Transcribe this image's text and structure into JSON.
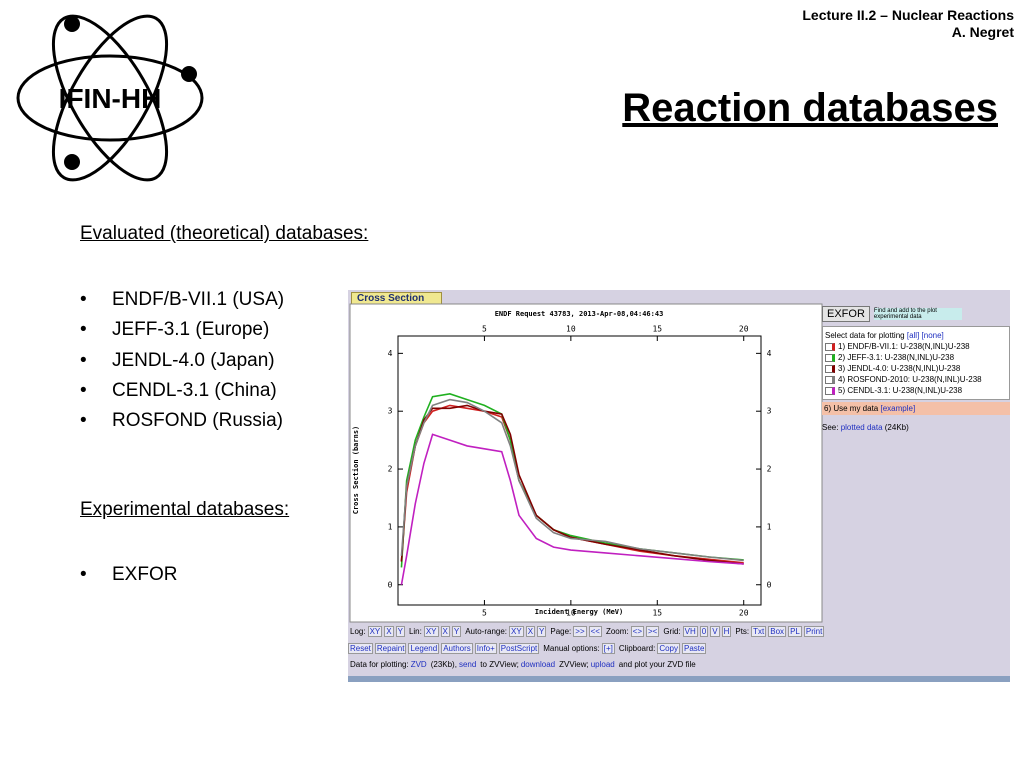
{
  "logo": {
    "text": "IFIN-HH"
  },
  "header": {
    "lecture": "Lecture II.2 – Nuclear Reactions",
    "author": "A. Negret",
    "title": "Reaction databases"
  },
  "body": {
    "heading1": "Evaluated (theoretical)  databases:",
    "list1": [
      "ENDF/B-VII.1 (USA)",
      "JEFF-3.1 (Europe)",
      "JENDL-4.0 (Japan)",
      "CENDL-3.1 (China)",
      "ROSFOND (Russia)"
    ],
    "heading2": "Experimental databases:",
    "list2": [
      "EXFOR"
    ]
  },
  "screenshot": {
    "tab": "Cross Section",
    "exfor_button": "EXFOR",
    "exfor_note": "Find and add to the plot experimental data",
    "select": [
      "Select data for plotting",
      "[all]",
      "[none]"
    ],
    "own_data": [
      "6) Use my data",
      "[example]"
    ],
    "see": [
      "See:",
      "plotted data",
      "(24Kb)"
    ],
    "toolbar": [
      [
        "Log:",
        "XY",
        "X",
        "Y",
        "Lin:",
        "XY",
        "X",
        "Y",
        "Auto-range:",
        "XY",
        "X",
        "Y",
        "Page:",
        ">>",
        "<<",
        "Zoom:",
        "<>",
        "><",
        "Grid:",
        "VH",
        "0",
        "V",
        "H",
        "Pts:",
        "Txt",
        "Box",
        "PL",
        "Print"
      ],
      [
        "Reset",
        "Repaint",
        "Legend",
        "Authors",
        "Info+",
        "PostScript",
        "Manual options:",
        "[+]",
        "Clipboard:",
        "Copy",
        "Paste"
      ],
      [
        "Data for plotting:",
        "ZVD",
        "(23Kb),",
        "send",
        "to ZVView;",
        "download",
        "ZVView;",
        "upload",
        "and plot your ZVD file"
      ]
    ]
  },
  "chart_data": {
    "type": "line",
    "title": "ENDF Request 43783, 2013-Apr-08,04:46:43",
    "x_label": "Incident Energy (MeV)",
    "y_label": "Cross Section (barns)",
    "x": [
      0.2,
      0.5,
      1,
      1.5,
      2,
      3,
      4,
      5,
      6,
      6.5,
      7,
      8,
      9,
      10,
      12,
      14,
      16,
      18,
      20
    ],
    "series": [
      {
        "name": "1) ENDF/B-VII.1: U-238(N,INL)U-238",
        "color": "#d02020",
        "values": [
          0.4,
          1.6,
          2.4,
          2.8,
          3.0,
          3.1,
          3.05,
          3.0,
          2.9,
          2.5,
          1.8,
          1.2,
          0.95,
          0.82,
          0.7,
          0.58,
          0.5,
          0.44,
          0.38
        ]
      },
      {
        "name": "2) JEFF-3.1: U-238(N,INL)U-238",
        "color": "#20b020",
        "values": [
          0.3,
          1.8,
          2.5,
          2.9,
          3.25,
          3.3,
          3.2,
          3.1,
          2.95,
          2.5,
          1.8,
          1.2,
          0.95,
          0.85,
          0.72,
          0.62,
          0.55,
          0.48,
          0.43
        ]
      },
      {
        "name": "3) JENDL-4.0: U-238(N,INL)U-238",
        "color": "#800000",
        "values": [
          0.4,
          1.7,
          2.4,
          2.85,
          3.05,
          3.05,
          3.1,
          3.0,
          2.95,
          2.6,
          1.9,
          1.2,
          0.95,
          0.82,
          0.7,
          0.6,
          0.5,
          0.42,
          0.36
        ]
      },
      {
        "name": "4) ROSFOND-2010: U-238(N,INL)U-238",
        "color": "#808080",
        "values": [
          0.5,
          1.7,
          2.4,
          2.8,
          3.1,
          3.2,
          3.15,
          3.0,
          2.8,
          2.4,
          1.8,
          1.15,
          0.9,
          0.8,
          0.75,
          0.62,
          0.55,
          0.48,
          0.42
        ]
      },
      {
        "name": "5) CENDL-3.1: U-238(N,INL)U-238",
        "color": "#c020c0",
        "values": [
          0.0,
          0.5,
          1.4,
          2.1,
          2.6,
          2.5,
          2.4,
          2.35,
          2.3,
          1.8,
          1.2,
          0.8,
          0.65,
          0.6,
          0.55,
          0.5,
          0.45,
          0.4,
          0.36
        ]
      }
    ],
    "xlim": [
      0,
      21
    ],
    "ylim": [
      -0.35,
      4.3
    ],
    "xticks": [
      5,
      10,
      15,
      20
    ],
    "yticks": [
      0,
      1,
      2,
      3,
      4
    ]
  }
}
